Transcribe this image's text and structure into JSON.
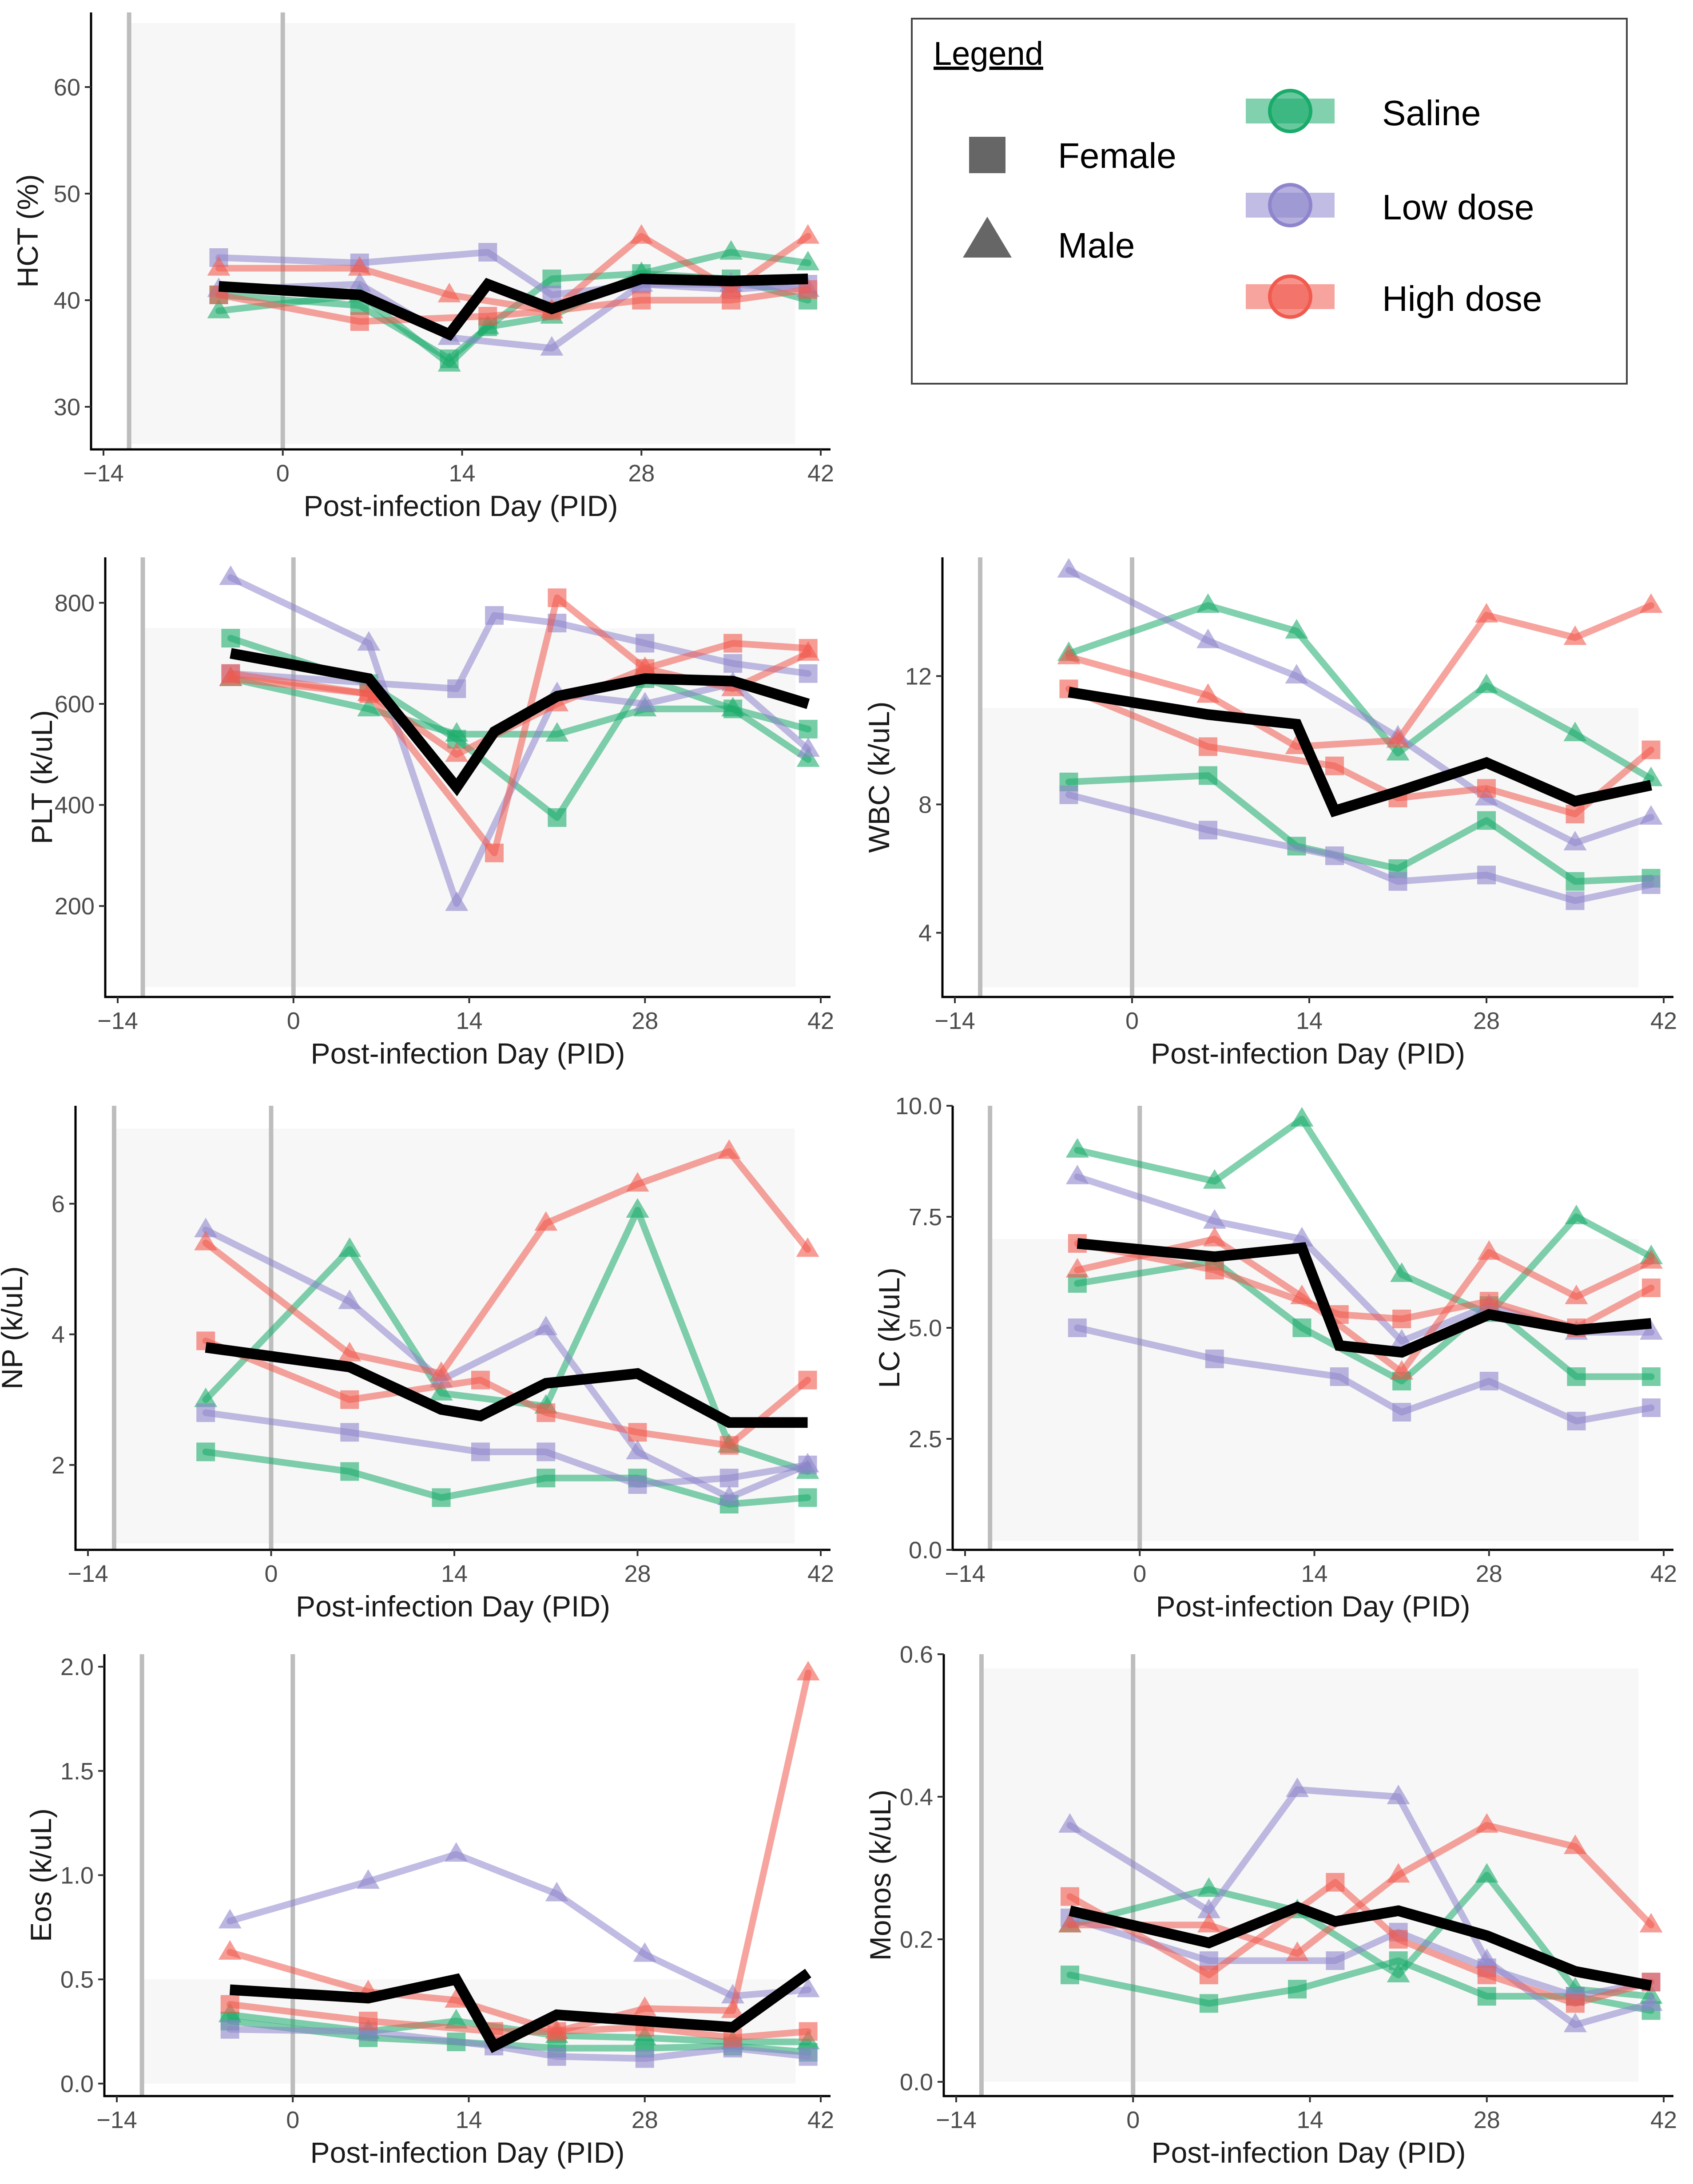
{
  "colors": {
    "saline": "#1aab6b",
    "low": "#8e85cc",
    "high": "#f15a4f",
    "mean": "#000000",
    "band": "#f7f7f7",
    "vline": "#bdbdbd"
  },
  "legend": {
    "title": "Legend",
    "shapes": [
      {
        "label": "Female",
        "shape": "square"
      },
      {
        "label": "Male",
        "shape": "triangle"
      }
    ],
    "groups": [
      {
        "label": "Saline",
        "key": "saline"
      },
      {
        "label": "Low dose",
        "key": "low"
      },
      {
        "label": "High dose",
        "key": "high"
      }
    ]
  },
  "chart_data": [
    {
      "type": "line",
      "id": "hct",
      "xlabel": "Post-infection Day (PID)",
      "ylabel": "HCT (%)",
      "xlim": [
        -14,
        42
      ],
      "ylim": [
        26,
        67
      ],
      "xticks": [
        -14,
        0,
        14,
        28,
        42
      ],
      "xtick_labels": [
        "−14",
        "0",
        "14",
        "28",
        "42"
      ],
      "yticks": [
        30,
        40,
        50,
        60
      ],
      "ytick_labels": [
        "30",
        "40",
        "50",
        "60"
      ],
      "vlines": [
        -12,
        0
      ],
      "normal_range": [
        26.5,
        66
      ],
      "band_x": [
        -12,
        40
      ],
      "x": [
        -5,
        6,
        13,
        16,
        21,
        28,
        35,
        41
      ],
      "series": [
        {
          "group": "saline",
          "shape": "square",
          "values": [
            40.5,
            39.5,
            34.5,
            37.5,
            42.0,
            42.5,
            42.0,
            40.0
          ]
        },
        {
          "group": "saline",
          "shape": "triangle",
          "values": [
            39.0,
            40.5,
            34.0,
            37.5,
            38.5,
            42.5,
            44.5,
            43.5
          ]
        },
        {
          "group": "low",
          "shape": "square",
          "values": [
            44.0,
            43.5,
            null,
            44.5,
            40.5,
            41.5,
            41.0,
            41.5
          ]
        },
        {
          "group": "low",
          "shape": "triangle",
          "values": [
            41.0,
            41.5,
            36.5,
            null,
            35.5,
            41.5,
            41.5,
            41.0
          ]
        },
        {
          "group": "high",
          "shape": "square",
          "values": [
            40.5,
            38.0,
            null,
            38.5,
            39.0,
            40.0,
            40.0,
            41.0
          ]
        },
        {
          "group": "high",
          "shape": "triangle",
          "values": [
            43.0,
            43.0,
            40.5,
            null,
            39.0,
            46.0,
            41.0,
            46.0
          ]
        }
      ],
      "mean": [
        41.3,
        40.5,
        36.8,
        41.5,
        39.2,
        42.0,
        41.8,
        42.0
      ]
    },
    {
      "type": "line",
      "id": "plt",
      "xlabel": "Post-infection Day (PID)",
      "ylabel": "PLT (k/uL)",
      "xlim": [
        -14,
        42
      ],
      "ylim": [
        20,
        890
      ],
      "xticks": [
        -14,
        0,
        14,
        28,
        42
      ],
      "xtick_labels": [
        "−14",
        "0",
        "14",
        "28",
        "42"
      ],
      "yticks": [
        200,
        400,
        600,
        800
      ],
      "ytick_labels": [
        "200",
        "400",
        "600",
        "800"
      ],
      "vlines": [
        -12,
        0
      ],
      "normal_range": [
        40,
        750
      ],
      "band_x": [
        -12,
        40
      ],
      "x": [
        -5,
        6,
        13,
        16,
        21,
        28,
        35,
        41
      ],
      "series": [
        {
          "group": "saline",
          "shape": "square",
          "values": [
            730,
            640,
            530,
            null,
            375,
            650,
            590,
            550
          ]
        },
        {
          "group": "saline",
          "shape": "triangle",
          "values": [
            650,
            590,
            540,
            null,
            540,
            590,
            590,
            490
          ]
        },
        {
          "group": "low",
          "shape": "square",
          "values": [
            660,
            null,
            630,
            775,
            760,
            720,
            680,
            660
          ]
        },
        {
          "group": "low",
          "shape": "triangle",
          "values": [
            850,
            720,
            205,
            null,
            620,
            600,
            640,
            510
          ]
        },
        {
          "group": "high",
          "shape": "square",
          "values": [
            660,
            620,
            null,
            305,
            810,
            670,
            720,
            710
          ]
        },
        {
          "group": "high",
          "shape": "triangle",
          "values": [
            650,
            620,
            500,
            null,
            600,
            670,
            630,
            700
          ]
        }
      ],
      "mean": [
        700,
        650,
        435,
        545,
        615,
        650,
        645,
        600
      ]
    },
    {
      "type": "line",
      "id": "wbc",
      "xlabel": "Post-infection Day (PID)",
      "ylabel": "WBC (k/uL)",
      "xlim": [
        -14,
        42
      ],
      "ylim": [
        2.0,
        15.7
      ],
      "xticks": [
        -14,
        0,
        14,
        28,
        42
      ],
      "xtick_labels": [
        "−14",
        "0",
        "14",
        "28",
        "42"
      ],
      "yticks": [
        4,
        8,
        12
      ],
      "ytick_labels": [
        "4",
        "8",
        "12"
      ],
      "vlines": [
        -12,
        0
      ],
      "normal_range": [
        2.3,
        11.0
      ],
      "band_x": [
        -12,
        40
      ],
      "x": [
        -5,
        6,
        13,
        16,
        21,
        28,
        35,
        41
      ],
      "series": [
        {
          "group": "saline",
          "shape": "square",
          "values": [
            8.7,
            8.9,
            6.7,
            null,
            6.0,
            7.5,
            5.6,
            5.7
          ]
        },
        {
          "group": "saline",
          "shape": "triangle",
          "values": [
            12.7,
            14.2,
            13.4,
            null,
            9.6,
            11.7,
            10.2,
            8.8
          ]
        },
        {
          "group": "low",
          "shape": "square",
          "values": [
            8.3,
            7.2,
            null,
            6.4,
            5.6,
            5.8,
            5.0,
            5.5
          ]
        },
        {
          "group": "low",
          "shape": "triangle",
          "values": [
            15.3,
            13.1,
            12.0,
            null,
            10.1,
            8.2,
            6.8,
            7.6
          ]
        },
        {
          "group": "high",
          "shape": "square",
          "values": [
            11.6,
            9.8,
            null,
            9.2,
            8.2,
            8.5,
            7.7,
            9.7
          ]
        },
        {
          "group": "high",
          "shape": "triangle",
          "values": [
            12.6,
            11.4,
            9.8,
            null,
            10.0,
            13.9,
            13.2,
            14.2
          ]
        }
      ],
      "mean": [
        11.5,
        10.8,
        10.5,
        7.8,
        8.4,
        9.3,
        8.1,
        8.6
      ]
    },
    {
      "type": "line",
      "id": "np",
      "xlabel": "Post-infection Day (PID)",
      "ylabel": "NP (k/uL)",
      "xlim": [
        -14,
        42
      ],
      "ylim": [
        0.7,
        7.5
      ],
      "xticks": [
        -14,
        0,
        14,
        28,
        42
      ],
      "xtick_labels": [
        "−14",
        "0",
        "14",
        "28",
        "42"
      ],
      "yticks": [
        2,
        4,
        6
      ],
      "ytick_labels": [
        "2",
        "4",
        "6"
      ],
      "vlines": [
        -12,
        0
      ],
      "normal_range": [
        0.8,
        7.15
      ],
      "band_x": [
        -12,
        40
      ],
      "x": [
        -5,
        6,
        13,
        16,
        21,
        28,
        35,
        41
      ],
      "series": [
        {
          "group": "saline",
          "shape": "square",
          "values": [
            2.2,
            1.9,
            1.5,
            null,
            1.8,
            1.8,
            1.4,
            1.5
          ]
        },
        {
          "group": "saline",
          "shape": "triangle",
          "values": [
            3.0,
            5.3,
            3.1,
            null,
            2.9,
            5.9,
            2.3,
            1.9
          ]
        },
        {
          "group": "low",
          "shape": "square",
          "values": [
            2.8,
            2.5,
            null,
            2.2,
            2.2,
            1.7,
            1.8,
            2.0
          ]
        },
        {
          "group": "low",
          "shape": "triangle",
          "values": [
            5.6,
            4.5,
            3.3,
            null,
            4.1,
            2.2,
            1.5,
            2.0
          ]
        },
        {
          "group": "high",
          "shape": "square",
          "values": [
            3.9,
            3.0,
            null,
            3.3,
            2.8,
            2.5,
            2.3,
            3.3
          ]
        },
        {
          "group": "high",
          "shape": "triangle",
          "values": [
            5.4,
            3.7,
            3.4,
            null,
            5.7,
            6.3,
            6.8,
            5.3
          ]
        }
      ],
      "mean": [
        3.8,
        3.5,
        2.85,
        2.75,
        3.25,
        3.4,
        2.65,
        2.65
      ]
    },
    {
      "type": "line",
      "id": "lc",
      "xlabel": "Post-infection Day (PID)",
      "ylabel": "LC (k/uL)",
      "xlim": [
        -14,
        42
      ],
      "ylim": [
        0,
        10.0
      ],
      "xticks": [
        -14,
        0,
        14,
        28,
        42
      ],
      "xtick_labels": [
        "−14",
        "0",
        "14",
        "28",
        "42"
      ],
      "yticks": [
        0.0,
        2.5,
        5.0,
        7.5,
        10.0
      ],
      "ytick_labels": [
        "0.0",
        "2.5",
        "5.0",
        "7.5",
        "10.0"
      ],
      "vlines": [
        -12,
        0
      ],
      "normal_range": [
        0.2,
        7.0
      ],
      "band_x": [
        -12,
        40
      ],
      "x": [
        -5,
        6,
        13,
        16,
        21,
        28,
        35,
        41
      ],
      "series": [
        {
          "group": "saline",
          "shape": "square",
          "values": [
            6.0,
            6.5,
            5.0,
            null,
            3.8,
            5.5,
            3.9,
            3.9
          ]
        },
        {
          "group": "saline",
          "shape": "triangle",
          "values": [
            9.0,
            8.3,
            9.7,
            null,
            6.2,
            5.3,
            7.5,
            6.6
          ]
        },
        {
          "group": "low",
          "shape": "square",
          "values": [
            5.0,
            4.3,
            null,
            3.9,
            3.1,
            3.8,
            2.9,
            3.2
          ]
        },
        {
          "group": "low",
          "shape": "triangle",
          "values": [
            8.4,
            7.4,
            7.0,
            null,
            4.7,
            5.5,
            4.9,
            4.9
          ]
        },
        {
          "group": "high",
          "shape": "square",
          "values": [
            6.9,
            6.3,
            null,
            5.3,
            5.2,
            5.6,
            5.0,
            5.9
          ]
        },
        {
          "group": "high",
          "shape": "triangle",
          "values": [
            6.3,
            7.0,
            5.7,
            null,
            4.0,
            6.7,
            5.7,
            6.5
          ]
        }
      ],
      "mean": [
        6.9,
        6.6,
        6.8,
        4.6,
        4.45,
        5.3,
        4.95,
        5.1
      ]
    },
    {
      "type": "line",
      "id": "eos",
      "xlabel": "Post-infection Day (PID)",
      "ylabel": "Eos (k/uL)",
      "xlim": [
        -14,
        42
      ],
      "ylim": [
        -0.06,
        2.06
      ],
      "xticks": [
        -14,
        0,
        14,
        28,
        42
      ],
      "xtick_labels": [
        "−14",
        "0",
        "14",
        "28",
        "42"
      ],
      "yticks": [
        0.0,
        0.5,
        1.0,
        1.5,
        2.0
      ],
      "ytick_labels": [
        "0.0",
        "0.5",
        "1.0",
        "1.5",
        "2.0"
      ],
      "vlines": [
        -12,
        0
      ],
      "normal_range": [
        0,
        0.5
      ],
      "band_x": [
        -12,
        40
      ],
      "x": [
        -5,
        6,
        13,
        16,
        21,
        28,
        35,
        41
      ],
      "series": [
        {
          "group": "saline",
          "shape": "square",
          "values": [
            0.3,
            0.22,
            0.2,
            null,
            0.17,
            0.17,
            0.18,
            0.15
          ]
        },
        {
          "group": "saline",
          "shape": "triangle",
          "values": [
            0.33,
            0.25,
            0.3,
            null,
            0.23,
            0.22,
            0.2,
            0.2
          ]
        },
        {
          "group": "low",
          "shape": "square",
          "values": [
            0.26,
            0.25,
            null,
            0.18,
            0.13,
            0.12,
            0.17,
            0.13
          ]
        },
        {
          "group": "low",
          "shape": "triangle",
          "values": [
            0.78,
            0.97,
            1.1,
            null,
            0.91,
            0.62,
            0.42,
            0.45
          ]
        },
        {
          "group": "high",
          "shape": "square",
          "values": [
            0.38,
            0.3,
            null,
            0.25,
            0.25,
            0.27,
            0.22,
            0.25
          ]
        },
        {
          "group": "high",
          "shape": "triangle",
          "values": [
            0.63,
            0.44,
            0.4,
            null,
            0.25,
            0.36,
            0.35,
            1.97
          ]
        }
      ],
      "mean": [
        0.45,
        0.41,
        0.5,
        0.18,
        0.33,
        0.3,
        0.27,
        0.53
      ]
    },
    {
      "type": "line",
      "id": "monos",
      "xlabel": "Post-infection Day (PID)",
      "ylabel": "Monos (k/uL)",
      "xlim": [
        -14,
        42
      ],
      "ylim": [
        -0.02,
        0.6
      ],
      "xticks": [
        -14,
        0,
        14,
        28,
        42
      ],
      "xtick_labels": [
        "−14",
        "0",
        "14",
        "28",
        "42"
      ],
      "yticks": [
        0.0,
        0.2,
        0.4,
        0.6
      ],
      "ytick_labels": [
        "0.0",
        "0.2",
        "0.4",
        "0.6"
      ],
      "vlines": [
        -12,
        0
      ],
      "normal_range": [
        0,
        0.58
      ],
      "band_x": [
        -12,
        40
      ],
      "x": [
        -5,
        6,
        13,
        16,
        21,
        28,
        35,
        41
      ],
      "series": [
        {
          "group": "saline",
          "shape": "square",
          "values": [
            0.15,
            0.11,
            0.13,
            null,
            0.17,
            0.12,
            0.12,
            0.1
          ]
        },
        {
          "group": "saline",
          "shape": "triangle",
          "values": [
            0.22,
            0.27,
            0.24,
            null,
            0.15,
            0.29,
            0.13,
            0.12
          ]
        },
        {
          "group": "low",
          "shape": "square",
          "values": [
            0.23,
            0.17,
            null,
            0.17,
            0.21,
            0.16,
            0.12,
            0.14
          ]
        },
        {
          "group": "low",
          "shape": "triangle",
          "values": [
            0.36,
            0.24,
            0.41,
            null,
            0.4,
            0.17,
            0.08,
            0.11
          ]
        },
        {
          "group": "high",
          "shape": "square",
          "values": [
            0.26,
            0.15,
            null,
            0.28,
            0.2,
            0.15,
            0.11,
            0.14
          ]
        },
        {
          "group": "high",
          "shape": "triangle",
          "values": [
            0.22,
            0.22,
            0.18,
            null,
            0.29,
            0.36,
            0.33,
            0.22
          ]
        }
      ],
      "mean": [
        0.24,
        0.195,
        0.245,
        0.225,
        0.24,
        0.205,
        0.155,
        0.135
      ]
    }
  ]
}
